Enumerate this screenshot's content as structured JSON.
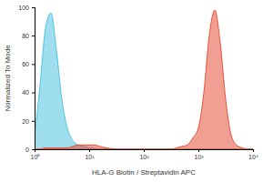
{
  "chart_data": {
    "type": "area",
    "x_label": "HLA-G Biotin / Streptavidin APC",
    "y_label": "Normalized To Mode",
    "log": "x",
    "x": [
      1,
      1.26,
      1.58,
      2,
      2.51,
      3.16,
      3.98,
      5.01,
      6.31,
      7.94,
      10,
      12.6,
      15.8,
      20,
      25.1,
      31.6,
      39.8,
      50.1,
      63.1,
      79.4,
      100,
      126,
      158,
      200,
      251,
      316,
      398,
      501,
      631,
      794,
      1000,
      1260,
      1580,
      2000,
      2510,
      3160,
      3980,
      5010,
      6310,
      7940,
      10000
    ],
    "series": [
      {
        "color": "#4fc3e0",
        "values": [
          10,
          45,
          85,
          96,
          70,
          35,
          15,
          6,
          3,
          2,
          1,
          0.5,
          0,
          0,
          0,
          0,
          0,
          0,
          0,
          0,
          0,
          0,
          0,
          0,
          0,
          0,
          0,
          0,
          0,
          0,
          0,
          0,
          0,
          0,
          0,
          0,
          0,
          0,
          0,
          0,
          0
        ]
      },
      {
        "color": "#e8503a",
        "values": [
          0,
          0,
          1,
          1,
          1,
          1,
          1,
          2,
          3,
          3,
          3,
          3,
          2,
          1,
          0.5,
          0,
          0,
          0,
          0,
          0,
          0,
          0,
          0,
          0,
          0,
          0,
          1,
          2,
          3,
          8,
          15,
          40,
          80,
          98,
          75,
          35,
          10,
          3,
          1,
          0,
          0
        ]
      }
    ],
    "xlim": [
      1,
      10000
    ],
    "xticks": [
      {
        "value": 1,
        "label": "10⁰"
      },
      {
        "value": 10,
        "label": "10¹"
      },
      {
        "value": 100,
        "label": "10²"
      },
      {
        "value": 1000,
        "label": "10³"
      },
      {
        "value": 10000,
        "label": "10⁴"
      }
    ],
    "ylim": [
      0,
      100
    ],
    "yticks": [
      0,
      20,
      40,
      60,
      80,
      100
    ]
  }
}
